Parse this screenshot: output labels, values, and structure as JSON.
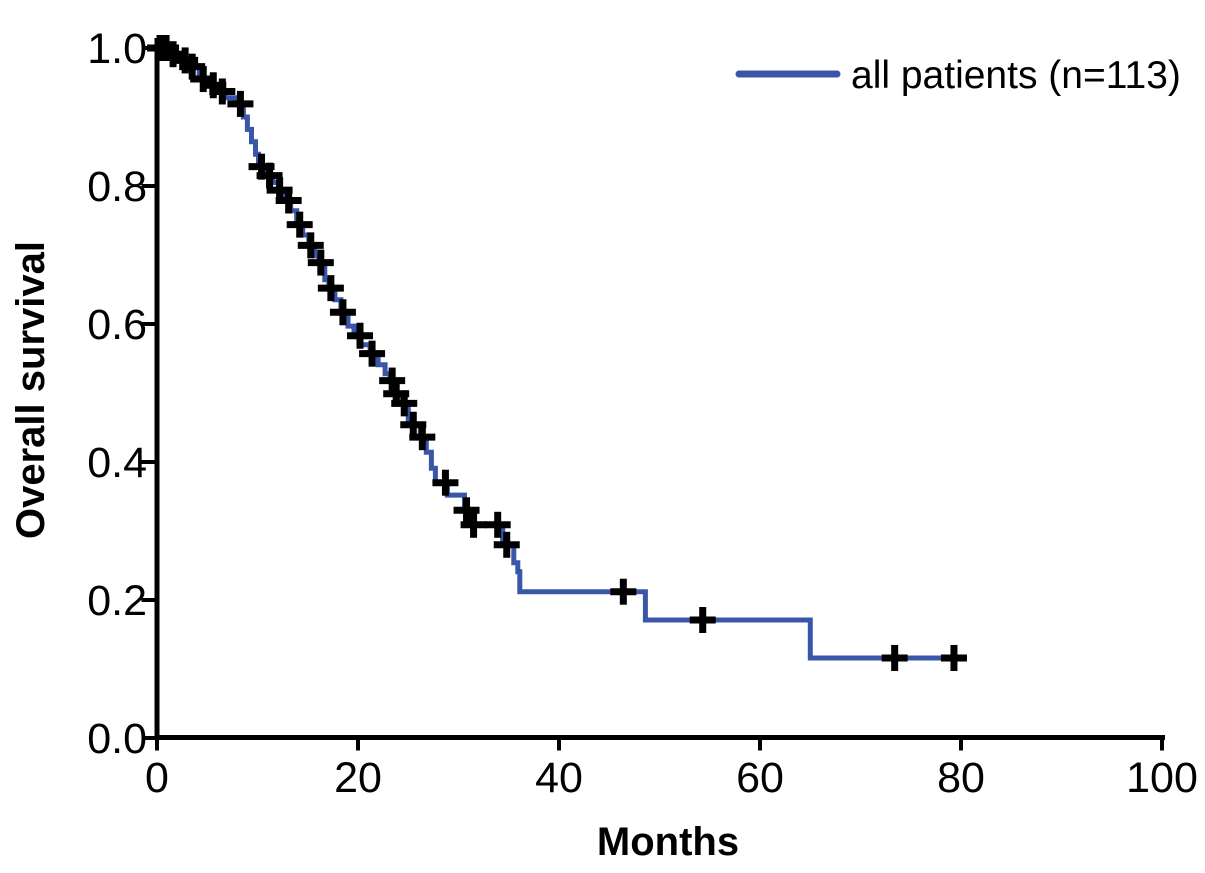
{
  "page": {
    "background_color": "#ffffff",
    "text_color": "#000000"
  },
  "chart_data": {
    "type": "line",
    "variant": "kaplan_meier_step_curve",
    "title": "",
    "xlabel": "Months",
    "ylabel": "Overall survival",
    "xlim": [
      0,
      100
    ],
    "ylim": [
      0.0,
      1.0
    ],
    "x_ticks": [
      0,
      20,
      40,
      60,
      80,
      100
    ],
    "x_tick_labels": [
      "0",
      "20",
      "40",
      "60",
      "80",
      "100"
    ],
    "y_ticks": [
      0.0,
      0.2,
      0.4,
      0.6,
      0.8,
      1.0
    ],
    "y_tick_labels": [
      "0.0",
      "0.2",
      "0.4",
      "0.6",
      "0.8",
      "1.0"
    ],
    "grid": false,
    "axis_color": "#000000",
    "legend": {
      "position": "top-right",
      "items": [
        {
          "label": "all patients (n=113)",
          "color": "#3a56a8",
          "marker": "line"
        }
      ]
    },
    "series": [
      {
        "name": "all patients (n=113)",
        "color": "#3a56a8",
        "line_width": 5,
        "start": [
          0,
          1.0
        ],
        "end_time": 79.6,
        "steps": [
          [
            1.2,
            0.991
          ],
          [
            2.4,
            0.982
          ],
          [
            3.2,
            0.973
          ],
          [
            4.2,
            0.955
          ],
          [
            5.0,
            0.946
          ],
          [
            5.9,
            0.937
          ],
          [
            6.8,
            0.928
          ],
          [
            7.8,
            0.919
          ],
          [
            8.6,
            0.9
          ],
          [
            9.0,
            0.882
          ],
          [
            9.4,
            0.864
          ],
          [
            9.8,
            0.846
          ],
          [
            10.1,
            0.828
          ],
          [
            10.9,
            0.815
          ],
          [
            11.5,
            0.805
          ],
          [
            12.1,
            0.794
          ],
          [
            12.7,
            0.779
          ],
          [
            13.3,
            0.764
          ],
          [
            13.9,
            0.744
          ],
          [
            14.5,
            0.729
          ],
          [
            15.1,
            0.714
          ],
          [
            15.7,
            0.699
          ],
          [
            16.1,
            0.689
          ],
          [
            16.7,
            0.664
          ],
          [
            17.1,
            0.652
          ],
          [
            17.7,
            0.635
          ],
          [
            18.3,
            0.617
          ],
          [
            19.0,
            0.597
          ],
          [
            19.6,
            0.583
          ],
          [
            20.3,
            0.57
          ],
          [
            21.2,
            0.557
          ],
          [
            22.0,
            0.541
          ],
          [
            22.7,
            0.528
          ],
          [
            23.2,
            0.518
          ],
          [
            23.7,
            0.499
          ],
          [
            24.0,
            0.485
          ],
          [
            25.0,
            0.454
          ],
          [
            26.2,
            0.436
          ],
          [
            26.8,
            0.414
          ],
          [
            27.3,
            0.391
          ],
          [
            27.7,
            0.37
          ],
          [
            28.9,
            0.352
          ],
          [
            30.6,
            0.33
          ],
          [
            31.1,
            0.309
          ],
          [
            34.4,
            0.28
          ],
          [
            35.5,
            0.254
          ],
          [
            35.9,
            0.241
          ],
          [
            36.1,
            0.212
          ],
          [
            48.6,
            0.171
          ],
          [
            65.0,
            0.116
          ]
        ],
        "censor_marker": "plus",
        "censor_color": "#000000",
        "censor_times": [
          0.3,
          0.9,
          1.6,
          2.8,
          3.5,
          4.6,
          5.6,
          6.5,
          8.3,
          10.4,
          11.2,
          12.2,
          13.1,
          14.2,
          15.3,
          16.3,
          17.3,
          18.5,
          20.2,
          21.4,
          23.4,
          23.8,
          24.6,
          25.5,
          26.4,
          28.7,
          30.8,
          31.5,
          33.9,
          34.8,
          46.4,
          54.3,
          73.4,
          79.3
        ]
      }
    ]
  }
}
